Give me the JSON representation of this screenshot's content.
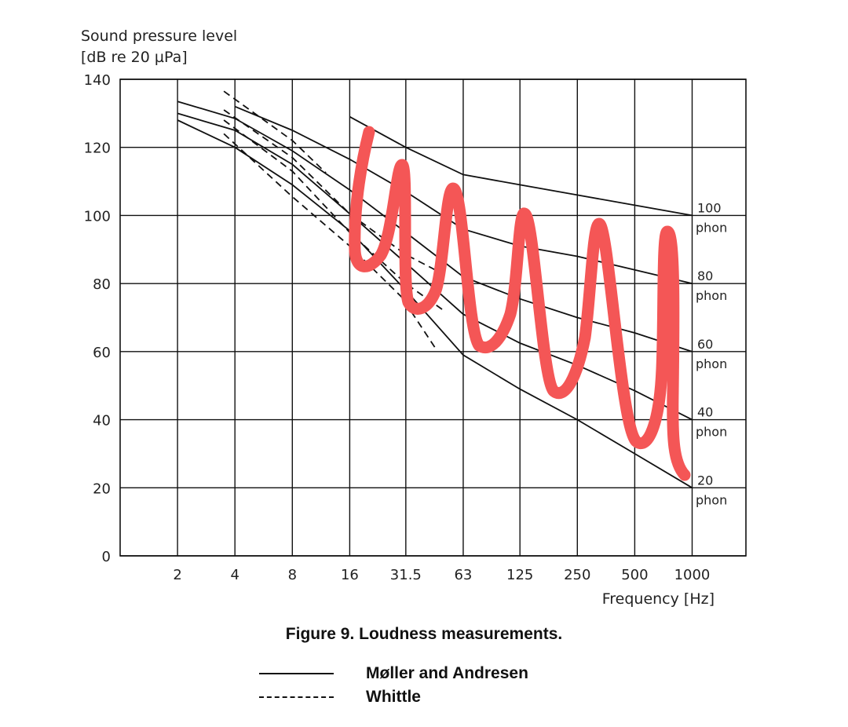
{
  "chart_data": {
    "type": "line",
    "title": "",
    "ylabel_line1": "Sound pressure level",
    "ylabel_line2": "[dB re 20 µPa]",
    "xlabel": "Frequency [Hz]",
    "x_scale": "log",
    "xlim": [
      1,
      2000
    ],
    "ylim": [
      0,
      140
    ],
    "grid": true,
    "x_ticks": [
      2,
      4,
      8,
      16,
      31.5,
      63,
      125,
      250,
      500,
      1000
    ],
    "x_tick_labels": [
      "2",
      "4",
      "8",
      "16",
      "31.5",
      "63",
      "125",
      "250",
      "500",
      "1000"
    ],
    "y_ticks": [
      0,
      20,
      40,
      60,
      80,
      100,
      120,
      140
    ],
    "y_tick_labels": [
      "0",
      "20",
      "40",
      "60",
      "80",
      "100",
      "120",
      "140"
    ],
    "series": [
      {
        "name": "Møller and Andresen",
        "label": "100",
        "unit": "phon",
        "style": "solid",
        "x": [
          16,
          31.5,
          63,
          125,
          250,
          500,
          1000
        ],
        "y": [
          129,
          120,
          112,
          109,
          106,
          103,
          100
        ]
      },
      {
        "name": "Møller and Andresen",
        "label": "80",
        "unit": "phon",
        "style": "solid",
        "x": [
          4,
          8,
          16,
          31.5,
          63,
          125,
          250,
          500,
          1000
        ],
        "y": [
          132,
          125,
          116.5,
          107,
          96,
          91,
          88,
          84,
          80
        ]
      },
      {
        "name": "Møller and Andresen",
        "label": "60",
        "unit": "phon",
        "style": "solid",
        "x": [
          2,
          4,
          8,
          16,
          31.5,
          63,
          125,
          250,
          500,
          1000
        ],
        "y": [
          133.5,
          128.5,
          119,
          107.5,
          95,
          82,
          75.5,
          70,
          65.5,
          60
        ]
      },
      {
        "name": "Møller and Andresen",
        "label": "40",
        "unit": "phon",
        "style": "solid",
        "x": [
          2,
          4,
          8,
          16,
          31.5,
          63,
          125,
          250,
          500,
          1000
        ],
        "y": [
          130,
          125,
          115,
          100.5,
          86,
          71,
          62.5,
          56,
          48.5,
          40
        ]
      },
      {
        "name": "Møller and Andresen",
        "label": "20",
        "unit": "phon",
        "style": "solid",
        "x": [
          2,
          4,
          8,
          16,
          31.5,
          63,
          125,
          250,
          500,
          1000
        ],
        "y": [
          128,
          120,
          109,
          95.5,
          78,
          59,
          49,
          40,
          30,
          20
        ]
      },
      {
        "name": "Whittle",
        "style": "dashed",
        "x": [
          3.5,
          8,
          12
        ],
        "y": [
          136.5,
          122,
          112.5
        ]
      },
      {
        "name": "Whittle",
        "style": "dashed",
        "x": [
          3.5,
          8,
          16,
          31.5,
          45
        ],
        "y": [
          131,
          117,
          100.5,
          88.5,
          84
        ]
      },
      {
        "name": "Whittle",
        "style": "dashed",
        "x": [
          3.5,
          8,
          16,
          31.5,
          50
        ],
        "y": [
          128,
          113,
          95,
          80,
          72
        ]
      },
      {
        "name": "Whittle",
        "style": "dashed",
        "x": [
          3.5,
          8,
          16,
          30,
          45
        ],
        "y": [
          124,
          105.5,
          91,
          76,
          61
        ]
      }
    ],
    "legend": {
      "placement": "bottom",
      "entries": [
        {
          "label": "Møller and Andresen",
          "style": "solid"
        },
        {
          "label": "Whittle",
          "style": "dashed"
        }
      ]
    },
    "annotation_color": "#f45656"
  },
  "caption": "Figure 9. Loudness measurements."
}
